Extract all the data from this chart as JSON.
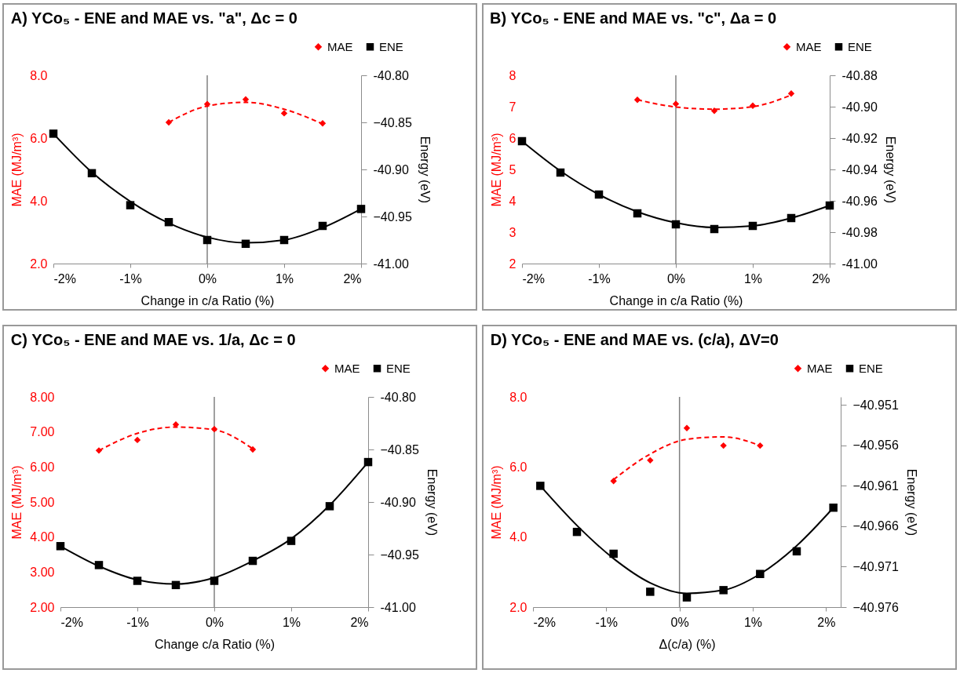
{
  "chart_data": [
    {
      "type": "scatter",
      "title": "A) YCo₅ - ENE and MAE vs. \"a\", Δc = 0",
      "xlabel": "Change in c/a Ratio (%)",
      "ylabel": "MAE (MJ/m³)",
      "y2label": "Energy (eV)",
      "legend": "top right",
      "xlim": [
        -2,
        2
      ],
      "xticks": [
        {
          "value": -2,
          "label": "-2%"
        },
        {
          "value": -1,
          "label": "-1%"
        },
        {
          "value": 0,
          "label": "0%"
        },
        {
          "value": 1,
          "label": "1%"
        },
        {
          "value": 2,
          "label": "2%"
        }
      ],
      "ylim": [
        2,
        8
      ],
      "yticks": [
        {
          "value": 2,
          "label": "2.0"
        },
        {
          "value": 4,
          "label": "4.0"
        },
        {
          "value": 6,
          "label": "6.0"
        },
        {
          "value": 8,
          "label": "8.0"
        }
      ],
      "y2lim": [
        -41,
        -40.8
      ],
      "y2ticks": [
        {
          "value": -41,
          "label": "-41.00"
        },
        -40.95,
        {
          "value": -40.9,
          "label": "-40.90"
        },
        -40.85,
        {
          "value": -40.8,
          "label": "-40.80"
        }
      ],
      "ref_lines": [
        {
          "axis": "x",
          "value": 0,
          "color": "#808080"
        }
      ],
      "series": [
        {
          "name": "MAE",
          "marker": "diamond",
          "color": "#ff0000",
          "x": [
            -0.5,
            0,
            0.5,
            1,
            1.5
          ],
          "values": [
            6.5,
            7.08,
            7.23,
            6.79,
            6.47
          ]
        },
        {
          "type": "line",
          "line_style": "dashed",
          "color": "#ff0000",
          "x": [
            -0.5,
            0,
            0.5,
            1,
            1.5
          ],
          "values": [
            6.5,
            7.02,
            7.14,
            6.92,
            6.45
          ]
        },
        {
          "name": "ENE",
          "marker": "square",
          "axis": "y2",
          "color": "#000000",
          "x": [
            -2,
            -1.5,
            -1,
            -0.5,
            0,
            0.5,
            1,
            1.5,
            2
          ],
          "values": [
            -40.862,
            -40.904,
            -40.938,
            -40.956,
            -40.975,
            -40.979,
            -40.975,
            -40.96,
            -40.942
          ]
        },
        {
          "type": "line",
          "line_style": "solid",
          "axis": "y2",
          "color": "#000000",
          "x": [
            -2,
            -1.5,
            -1,
            -0.5,
            0,
            0.5,
            1,
            1.5,
            2
          ],
          "values": [
            -40.862,
            -40.903,
            -40.934,
            -40.957,
            -40.972,
            -40.978,
            -40.975,
            -40.962,
            -40.942
          ]
        }
      ]
    },
    {
      "type": "scatter",
      "title": "B) YCo₅ - ENE and MAE vs. \"c\", Δa = 0",
      "xlabel": "Change in c/a Ratio (%)",
      "ylabel": "MAE (MJ/m³)",
      "y2label": "Energy (eV)",
      "legend": "top right",
      "xlim": [
        -2,
        2
      ],
      "xticks": [
        {
          "value": -2,
          "label": "-2%"
        },
        {
          "value": -1,
          "label": "-1%"
        },
        {
          "value": 0,
          "label": "0%"
        },
        {
          "value": 1,
          "label": "1%"
        },
        {
          "value": 2,
          "label": "2%"
        }
      ],
      "ylim": [
        2,
        8
      ],
      "yticks": [
        2,
        3,
        4,
        5,
        6,
        7,
        8
      ],
      "y2lim": [
        -41,
        -40.88
      ],
      "y2ticks": [
        {
          "value": -41,
          "label": "-41.00"
        },
        {
          "value": -40.98,
          "label": "-40.98"
        },
        {
          "value": -40.96,
          "label": "-40.96"
        },
        {
          "value": -40.94,
          "label": "-40.94"
        },
        {
          "value": -40.92,
          "label": "-40.92"
        },
        {
          "value": -40.9,
          "label": "-40.90"
        },
        {
          "value": -40.88,
          "label": "-40.88"
        }
      ],
      "ref_lines": [
        {
          "axis": "x",
          "value": 0,
          "color": "#808080"
        }
      ],
      "series": [
        {
          "name": "MAE",
          "marker": "diamond",
          "color": "#ff0000",
          "x": [
            -0.5,
            0,
            0.5,
            1,
            1.5
          ],
          "values": [
            7.22,
            7.09,
            6.87,
            7.03,
            7.42
          ]
        },
        {
          "type": "line",
          "line_style": "dashed",
          "color": "#ff0000",
          "x": [
            -0.5,
            0,
            0.5,
            1,
            1.5
          ],
          "values": [
            7.22,
            6.99,
            6.92,
            7.0,
            7.37
          ]
        },
        {
          "name": "ENE",
          "marker": "square",
          "axis": "y2",
          "color": "#000000",
          "x": [
            -2,
            -1.5,
            -1,
            -0.5,
            0,
            0.5,
            1,
            1.5,
            2
          ],
          "values": [
            -40.922,
            -40.942,
            -40.956,
            -40.968,
            -40.975,
            -40.978,
            -40.976,
            -40.971,
            -40.963
          ]
        },
        {
          "type": "line",
          "line_style": "solid",
          "axis": "y2",
          "color": "#000000",
          "x": [
            -2,
            -1.5,
            -1,
            -0.5,
            0,
            0.5,
            1,
            1.5,
            2
          ],
          "values": [
            -40.922,
            -40.941,
            -40.956,
            -40.967,
            -40.974,
            -40.977,
            -40.976,
            -40.971,
            -40.963
          ]
        }
      ]
    },
    {
      "type": "scatter",
      "title": "C) YCo₅ - ENE and MAE vs. 1/a, Δc = 0",
      "xlabel": "Change c/a Ratio (%)",
      "ylabel": "MAE (MJ/m³)",
      "y2label": "Energy (eV)",
      "legend": "top right",
      "xlim": [
        -2,
        2
      ],
      "xticks": [
        {
          "value": -2,
          "label": "-2%"
        },
        {
          "value": -1,
          "label": "-1%"
        },
        {
          "value": 0,
          "label": "0%"
        },
        {
          "value": 1,
          "label": "1%"
        },
        {
          "value": 2,
          "label": "2%"
        }
      ],
      "ylim": [
        2,
        8
      ],
      "yticks": [
        {
          "value": 2,
          "label": "2.00"
        },
        {
          "value": 3,
          "label": "3.00"
        },
        {
          "value": 4,
          "label": "4.00"
        },
        {
          "value": 5,
          "label": "5.00"
        },
        {
          "value": 6,
          "label": "6.00"
        },
        {
          "value": 7,
          "label": "7.00"
        },
        {
          "value": 8,
          "label": "8.00"
        }
      ],
      "y2lim": [
        -41,
        -40.8
      ],
      "y2ticks": [
        {
          "value": -41,
          "label": "-41.00"
        },
        -40.95,
        {
          "value": -40.9,
          "label": "-40.90"
        },
        -40.85,
        {
          "value": -40.8,
          "label": "-40.80"
        }
      ],
      "ref_lines": [
        {
          "axis": "x",
          "value": 0,
          "color": "#808080"
        }
      ],
      "series": [
        {
          "name": "MAE",
          "marker": "diamond",
          "color": "#ff0000",
          "x": [
            -1.5,
            -1,
            -0.5,
            0,
            0.5
          ],
          "values": [
            6.47,
            6.77,
            7.21,
            7.08,
            6.5
          ]
        },
        {
          "type": "line",
          "line_style": "dashed",
          "color": "#ff0000",
          "x": [
            -1.5,
            -1,
            -0.5,
            0,
            0.5
          ],
          "values": [
            6.47,
            6.96,
            7.14,
            7.06,
            6.52
          ]
        },
        {
          "name": "ENE",
          "marker": "square",
          "axis": "y2",
          "color": "#000000",
          "x": [
            -2,
            -1.5,
            -1,
            -0.5,
            0,
            0.5,
            1,
            1.5,
            2
          ],
          "values": [
            -40.942,
            -40.96,
            -40.975,
            -40.979,
            -40.975,
            -40.956,
            -40.937,
            -40.904,
            -40.862
          ]
        },
        {
          "type": "line",
          "line_style": "solid",
          "axis": "y2",
          "color": "#000000",
          "x": [
            -2,
            -1.5,
            -1,
            -0.5,
            0,
            0.5,
            1,
            1.5,
            2
          ],
          "values": [
            -40.942,
            -40.961,
            -40.974,
            -40.978,
            -40.972,
            -40.956,
            -40.935,
            -40.903,
            -40.862
          ]
        }
      ]
    },
    {
      "type": "scatter",
      "title": "D) YCo₅ - ENE and MAE vs. (c/a), ΔV=0",
      "xlabel": "Δ(c/a) (%)",
      "ylabel": "MAE (MJ/m³)",
      "y2label": "Energy (eV)",
      "legend": "top right",
      "xlim": [
        -2,
        2.2
      ],
      "xticks": [
        {
          "value": -2,
          "label": "-2%"
        },
        {
          "value": -1,
          "label": "-1%"
        },
        {
          "value": 0,
          "label": "0%"
        },
        {
          "value": 1,
          "label": "1%"
        },
        {
          "value": 2,
          "label": "2%"
        }
      ],
      "ylim": [
        2,
        8
      ],
      "yticks": [
        {
          "value": 2,
          "label": "2.0"
        },
        {
          "value": 4,
          "label": "4.0"
        },
        {
          "value": 6,
          "label": "6.0"
        },
        {
          "value": 8,
          "label": "8.0"
        }
      ],
      "y2lim": [
        -40.976,
        -40.95
      ],
      "y2ticks": [
        -40.976,
        -40.971,
        -40.966,
        -40.961,
        -40.956,
        -40.951
      ],
      "ref_lines": [
        {
          "axis": "x",
          "value": 0,
          "color": "#808080"
        }
      ],
      "series": [
        {
          "name": "MAE",
          "marker": "diamond",
          "color": "#ff0000",
          "x": [
            -0.9,
            -0.4,
            0.1,
            0.6,
            1.1
          ],
          "values": [
            5.6,
            6.19,
            7.11,
            6.61,
            6.61
          ]
        },
        {
          "type": "line",
          "line_style": "dashed",
          "color": "#ff0000",
          "x": [
            -0.9,
            -0.4,
            0.1,
            0.6,
            1.1
          ],
          "values": [
            5.64,
            6.37,
            6.79,
            6.86,
            6.61
          ]
        },
        {
          "name": "ENE",
          "marker": "square",
          "axis": "y2",
          "color": "#000000",
          "x": [
            -1.9,
            -1.4,
            -0.9,
            -0.4,
            0.1,
            0.6,
            1.1,
            1.6,
            2.1
          ],
          "values": [
            -40.961,
            -40.9667,
            -40.9694,
            -40.9741,
            -40.9748,
            -40.9739,
            -40.9719,
            -40.9691,
            -40.9637
          ]
        },
        {
          "type": "line",
          "line_style": "solid",
          "axis": "y2",
          "color": "#000000",
          "x": [
            -1.9,
            -1.4,
            -0.9,
            -0.4,
            0.1,
            0.6,
            1.1,
            1.6,
            2.1
          ],
          "values": [
            -40.961,
            -40.9659,
            -40.97,
            -40.973,
            -40.9743,
            -40.9739,
            -40.9719,
            -40.9684,
            -40.9637
          ]
        }
      ]
    }
  ]
}
